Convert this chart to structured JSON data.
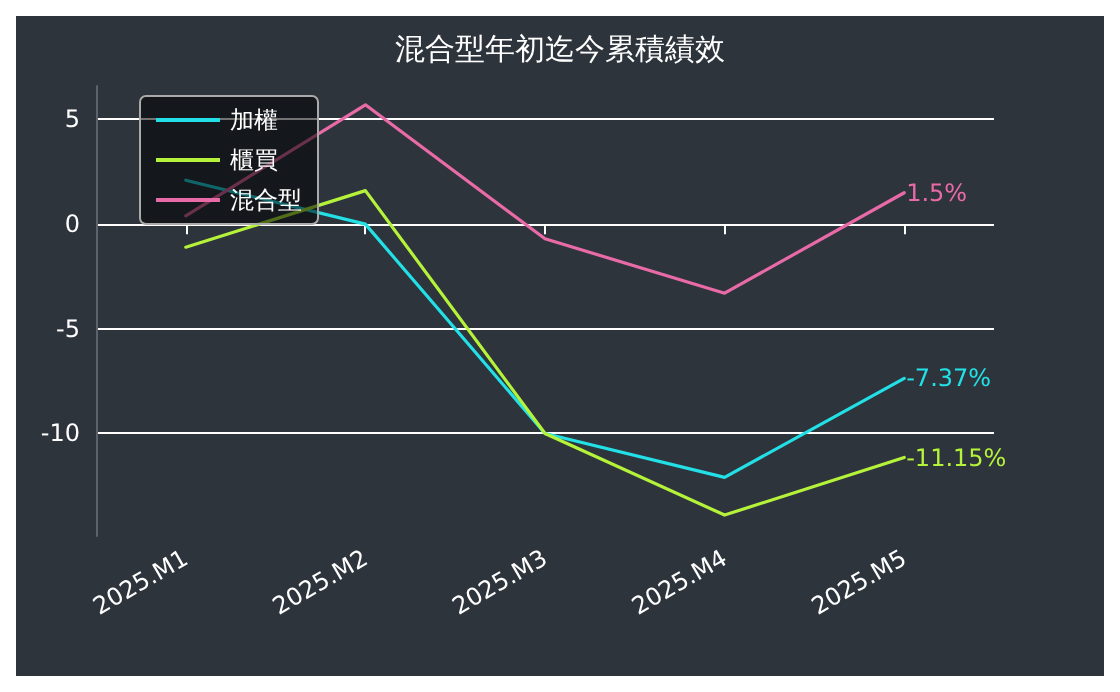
{
  "chart_data": {
    "type": "line",
    "title": "混合型年初迄今累積績效",
    "categories": [
      "2025.M1",
      "2025.M2",
      "2025.M3",
      "2025.M4",
      "2025.M5"
    ],
    "series": [
      {
        "name": "加權",
        "color": "#22e0e6",
        "values": [
          2.1,
          0,
          -10,
          -12.1,
          -7.37
        ],
        "value_labels": [
          null,
          null,
          null,
          null,
          "-7.37%"
        ]
      },
      {
        "name": "櫃買",
        "color": "#b5f23a",
        "values": [
          -1.1,
          1.6,
          -10,
          -13.9,
          -11.15
        ],
        "value_labels": [
          null,
          null,
          null,
          null,
          "-11.15%"
        ]
      },
      {
        "name": "混合型",
        "color": "#e86aa6",
        "values": [
          0.4,
          5.7,
          -0.7,
          -3.3,
          1.5
        ],
        "value_labels": [
          null,
          null,
          null,
          null,
          "1.5%"
        ]
      }
    ],
    "ylim": [
      -14.9,
      6.6
    ],
    "yticks": [
      -10,
      -5,
      0,
      5
    ],
    "grid": "y",
    "legend": "top left",
    "marker": "none",
    "line_style": "solid"
  }
}
